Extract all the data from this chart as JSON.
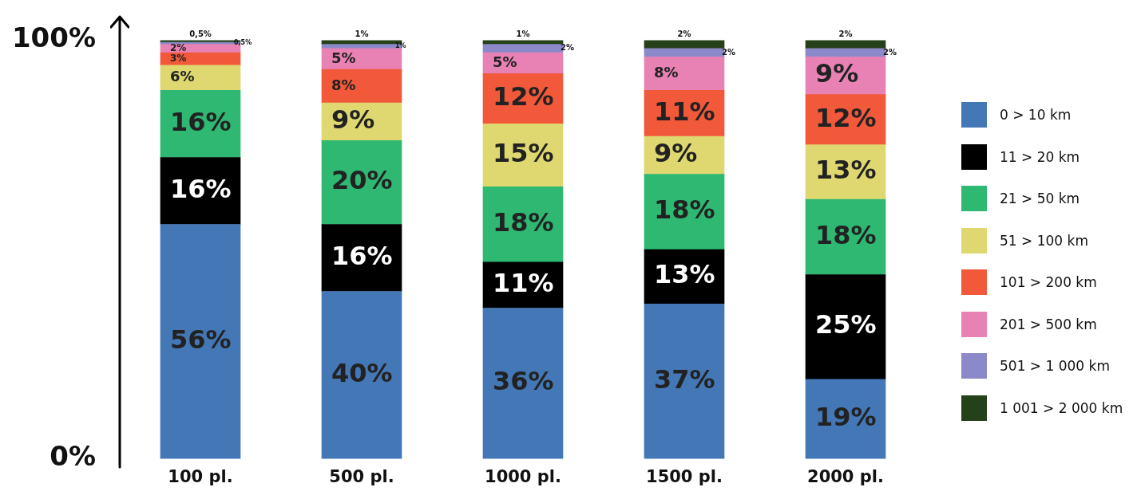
{
  "chart_data": {
    "type": "bar",
    "stacked": true,
    "categories": [
      "100 pl.",
      "500 pl.",
      "1000 pl.",
      "1500 pl.",
      "2000 pl."
    ],
    "ylim": [
      0,
      100
    ],
    "yticks": [
      {
        "value": 0,
        "label": "0%"
      },
      {
        "value": 100,
        "label": "100%"
      }
    ],
    "grid": false,
    "legend": "right",
    "series": [
      {
        "name": "0 > 10 km",
        "color": "#4477b5",
        "values": [
          56,
          40,
          36,
          37,
          19
        ],
        "value_labels": [
          "56%",
          "40%",
          "36%",
          "37%",
          "19%"
        ]
      },
      {
        "name": "11 > 20 km",
        "color": "#000000",
        "values": [
          16,
          16,
          11,
          13,
          25
        ],
        "value_labels": [
          "16%",
          "16%",
          "11%",
          "13%",
          "25%"
        ]
      },
      {
        "name": "21 > 50 km",
        "color": "#2eb872",
        "values": [
          16,
          20,
          18,
          18,
          18
        ],
        "value_labels": [
          "16%",
          "20%",
          "18%",
          "18%",
          "18%"
        ]
      },
      {
        "name": "51 > 100 km",
        "color": "#dfd870",
        "values": [
          6,
          9,
          15,
          9,
          13
        ],
        "value_labels": [
          "6%",
          "9%",
          "15%",
          "9%",
          "13%"
        ]
      },
      {
        "name": "101 > 200 km",
        "color": "#f2583a",
        "values": [
          3,
          8,
          12,
          11,
          12
        ],
        "value_labels": [
          "3%",
          "8%",
          "12%",
          "11%",
          "12%"
        ]
      },
      {
        "name": "201 > 500 km",
        "color": "#e882b4",
        "values": [
          2,
          5,
          5,
          8,
          9
        ],
        "value_labels": [
          "2%",
          "5%",
          "5%",
          "8%",
          "9%"
        ]
      },
      {
        "name": "501 > 1 000 km",
        "color": "#8b89c9",
        "values": [
          0.5,
          1,
          2,
          2,
          2
        ],
        "value_labels": [
          "0,5%",
          "1%",
          "2%",
          "2%",
          "2%"
        ]
      },
      {
        "name": "1 001 > 2 000 km",
        "color": "#254119",
        "values": [
          0.5,
          1,
          1,
          2,
          2
        ],
        "value_labels": [
          "0,5%",
          "1%",
          "1%",
          "2%",
          "2%"
        ]
      }
    ]
  }
}
